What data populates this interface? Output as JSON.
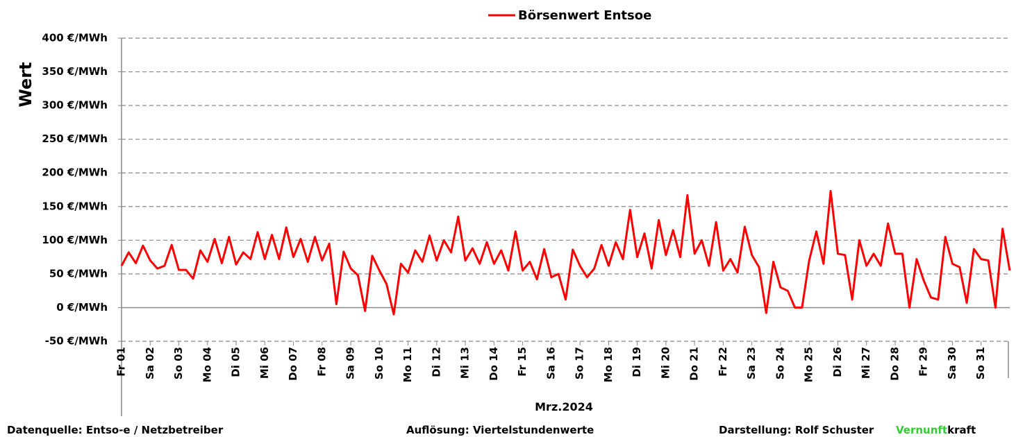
{
  "chart_data": {
    "type": "line",
    "legend": "top",
    "xlabel": "Mrz.2024",
    "ylabel": "Wert",
    "xlim": [
      1,
      32
    ],
    "ylim": [
      -50,
      400
    ],
    "grid": true,
    "negative_tick_color": "#ff0000",
    "yticks": [
      {
        "value": -50,
        "label": "-50 €/MWh"
      },
      {
        "value": 0,
        "label": "0 €/MWh"
      },
      {
        "value": 50,
        "label": "50 €/MWh"
      },
      {
        "value": 100,
        "label": "100 €/MWh"
      },
      {
        "value": 150,
        "label": "150 €/MWh"
      },
      {
        "value": 200,
        "label": "200 €/MWh"
      },
      {
        "value": 250,
        "label": "250 €/MWh"
      },
      {
        "value": 300,
        "label": "300 €/MWh"
      },
      {
        "value": 350,
        "label": "350 €/MWh"
      },
      {
        "value": 400,
        "label": "400 €/MWh"
      }
    ],
    "xticks": [
      {
        "value": 1,
        "label": "Fr 01"
      },
      {
        "value": 2,
        "label": "Sa 02"
      },
      {
        "value": 3,
        "label": "So 03"
      },
      {
        "value": 4,
        "label": "Mo 04"
      },
      {
        "value": 5,
        "label": "Di 05"
      },
      {
        "value": 6,
        "label": "Mi 06"
      },
      {
        "value": 7,
        "label": "Do 07"
      },
      {
        "value": 8,
        "label": "Fr 08"
      },
      {
        "value": 9,
        "label": "Sa 09"
      },
      {
        "value": 10,
        "label": "So 10"
      },
      {
        "value": 11,
        "label": "Mo 11"
      },
      {
        "value": 12,
        "label": "Di 12"
      },
      {
        "value": 13,
        "label": "Mi 13"
      },
      {
        "value": 14,
        "label": "Do 14"
      },
      {
        "value": 15,
        "label": "Fr 15"
      },
      {
        "value": 16,
        "label": "Sa 16"
      },
      {
        "value": 17,
        "label": "So 17"
      },
      {
        "value": 18,
        "label": "Mo 18"
      },
      {
        "value": 19,
        "label": "Di 19"
      },
      {
        "value": 20,
        "label": "Mi 20"
      },
      {
        "value": 21,
        "label": "Do 21"
      },
      {
        "value": 22,
        "label": "Fr 22"
      },
      {
        "value": 23,
        "label": "Sa 23"
      },
      {
        "value": 24,
        "label": "So 24"
      },
      {
        "value": 25,
        "label": "Mo 25"
      },
      {
        "value": 26,
        "label": "Di 26"
      },
      {
        "value": 27,
        "label": "Mi 27"
      },
      {
        "value": 28,
        "label": "Do 28"
      },
      {
        "value": 29,
        "label": "Fr 29"
      },
      {
        "value": 30,
        "label": "Sa 30"
      },
      {
        "value": 31,
        "label": "So 31"
      }
    ],
    "x": [
      1,
      1.25,
      1.5,
      1.75,
      2,
      2.25,
      2.5,
      2.75,
      3,
      3.25,
      3.5,
      3.75,
      4,
      4.25,
      4.5,
      4.75,
      5,
      5.25,
      5.5,
      5.75,
      6,
      6.25,
      6.5,
      6.75,
      7,
      7.25,
      7.5,
      7.75,
      8,
      8.25,
      8.5,
      8.75,
      9,
      9.25,
      9.5,
      9.75,
      10,
      10.25,
      10.5,
      10.75,
      11,
      11.25,
      11.5,
      11.75,
      12,
      12.25,
      12.5,
      12.75,
      13,
      13.25,
      13.5,
      13.75,
      14,
      14.25,
      14.5,
      14.75,
      15,
      15.25,
      15.5,
      15.75,
      16,
      16.25,
      16.5,
      16.75,
      17,
      17.25,
      17.5,
      17.75,
      18,
      18.25,
      18.5,
      18.75,
      19,
      19.25,
      19.5,
      19.75,
      20,
      20.25,
      20.5,
      20.75,
      21,
      21.25,
      21.5,
      21.75,
      22,
      22.25,
      22.5,
      22.75,
      23,
      23.25,
      23.5,
      23.75,
      24,
      24.25,
      24.5,
      24.75,
      25,
      25.25,
      25.5,
      25.75,
      26,
      26.25,
      26.5,
      26.75,
      27,
      27.25,
      27.5,
      27.75,
      28,
      28.25,
      28.5,
      28.75,
      29,
      29.25,
      29.5,
      29.75,
      30,
      30.25,
      30.5,
      30.75,
      31,
      31.25,
      31.5,
      31.75,
      32
    ],
    "series": [
      {
        "name": "Börsenwert Entsoe",
        "color": "#ff0000",
        "values": [
          62,
          82,
          66,
          92,
          70,
          58,
          62,
          93,
          56,
          56,
          43,
          85,
          68,
          102,
          66,
          105,
          64,
          82,
          72,
          112,
          72,
          108,
          72,
          119,
          75,
          102,
          68,
          105,
          70,
          95,
          5,
          83,
          58,
          48,
          -5,
          77,
          55,
          35,
          -10,
          65,
          52,
          85,
          68,
          107,
          70,
          100,
          82,
          135,
          70,
          88,
          65,
          97,
          65,
          85,
          55,
          113,
          55,
          68,
          42,
          87,
          45,
          50,
          12,
          86,
          62,
          45,
          58,
          93,
          62,
          97,
          72,
          145,
          75,
          110,
          58,
          130,
          78,
          115,
          75,
          167,
          80,
          100,
          62,
          127,
          55,
          72,
          52,
          120,
          78,
          60,
          -8,
          68,
          30,
          25,
          0,
          0,
          70,
          113,
          65,
          173,
          80,
          78,
          12,
          100,
          62,
          80,
          62,
          125,
          80,
          80,
          0,
          72,
          40,
          15,
          12,
          105,
          65,
          60,
          7,
          87,
          72,
          70,
          0,
          117,
          55
        ]
      }
    ]
  },
  "footer": {
    "source": "Datenquelle:  Entso-e  / Netzbetreiber",
    "resolution": "Auflösung:  Viertelstundenwerte",
    "author": "Darstellung:  Rolf Schuster",
    "brand_green": "Vernunft",
    "brand_black": "kraft"
  }
}
